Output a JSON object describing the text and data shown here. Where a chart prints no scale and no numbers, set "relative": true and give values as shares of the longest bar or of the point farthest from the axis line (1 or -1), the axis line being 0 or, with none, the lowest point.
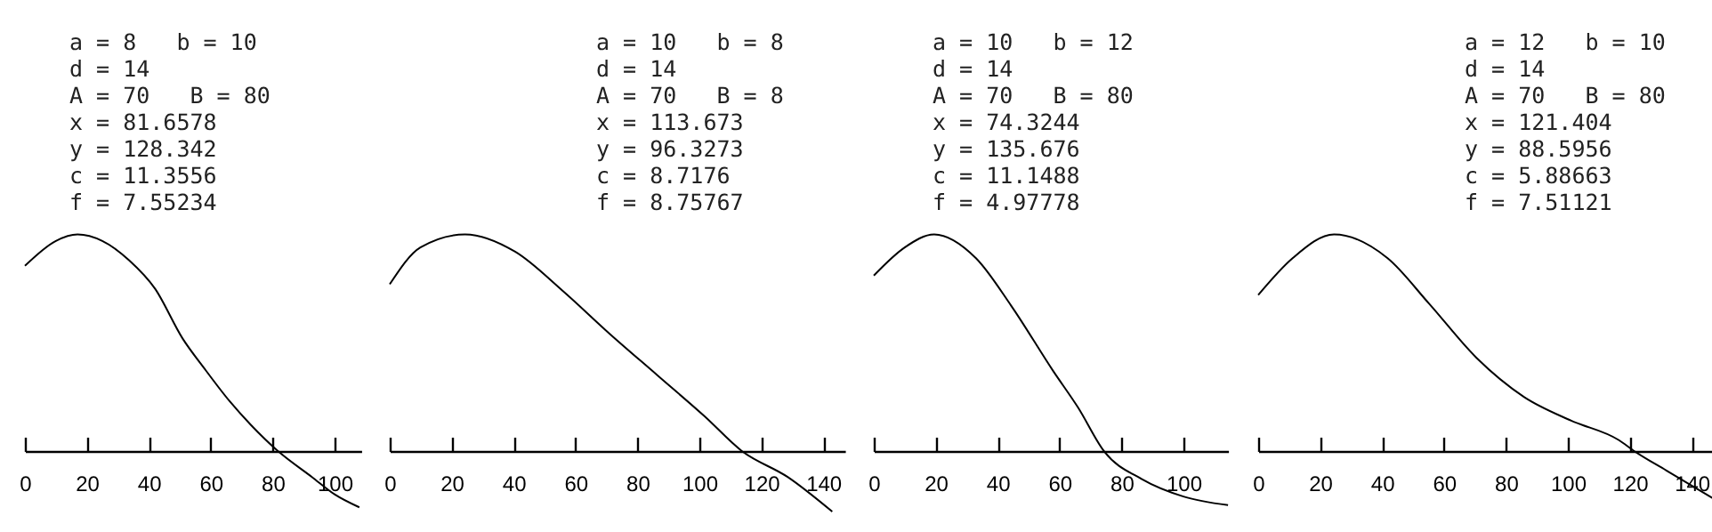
{
  "chart_data": [
    {
      "type": "line",
      "relative": true,
      "tick_labels": "x",
      "annotations": [
        "a = 8   b = 10",
        "d = 14",
        "A = 70   B = 80",
        "x = 81.6578",
        "y = 128.342",
        "c = 11.3556",
        "f = 7.55234"
      ],
      "xlim": [
        0,
        108.6
      ],
      "xticks": [
        0,
        20,
        40,
        60,
        80,
        100
      ],
      "series": [
        {
          "color": "#000000",
          "x": [
            0,
            10,
            17,
            25,
            33.7,
            42,
            50.9,
            58,
            66.1,
            73,
            81.7,
            92.7,
            100,
            108
          ],
          "values": [
            0.855,
            0.97,
            1,
            0.97,
            0.88,
            0.75,
            0.52,
            0.38,
            0.23,
            0.12,
            0,
            -0.12,
            -0.2,
            -0.26
          ]
        }
      ]
    },
    {
      "type": "line",
      "relative": true,
      "tick_labels": "x",
      "annotations": [
        "a = 10   b = 8",
        "d = 14",
        "A = 70   B = 8",
        "x = 113.673",
        "y = 96.3273",
        "c = 8.7176",
        "f = 8.75767"
      ],
      "xlim": [
        0,
        147
      ],
      "xticks": [
        0,
        20,
        40,
        60,
        80,
        100,
        120,
        140
      ],
      "series": [
        {
          "color": "#000000",
          "x": [
            0,
            9.9,
            24.3,
            40.5,
            55.8,
            71.1,
            86.4,
            101.7,
            113.7,
            128.5,
            142.9
          ],
          "values": [
            0.77,
            0.94,
            1,
            0.92,
            0.74,
            0.54,
            0.35,
            0.16,
            0,
            -0.12,
            -0.28
          ]
        }
      ]
    },
    {
      "type": "line",
      "relative": true,
      "tick_labels": "x",
      "annotations": [
        "a = 10   b = 12",
        "d = 14",
        "A = 70   B = 80",
        "x = 74.3244",
        "y = 135.676",
        "c = 11.1488",
        "f = 4.97778"
      ],
      "xlim": [
        0,
        114.4
      ],
      "xticks": [
        0,
        20,
        40,
        60,
        80,
        100
      ],
      "series": [
        {
          "color": "#000000",
          "x": [
            0,
            10,
            19.5,
            33,
            44.4,
            57.9,
            66,
            74.3,
            86.6,
            100,
            114.4
          ],
          "values": [
            0.81,
            0.94,
            1,
            0.89,
            0.67,
            0.37,
            0.2,
            0,
            -0.13,
            -0.21,
            -0.25
          ]
        }
      ]
    },
    {
      "type": "line",
      "relative": true,
      "tick_labels": "x",
      "annotations": [
        "a = 12   b = 10",
        "d = 14",
        "A = 70   B = 80",
        "x = 121.404",
        "y = 88.5956",
        "c = 5.88663",
        "f = 7.51121"
      ],
      "xlim": [
        0,
        147.1
      ],
      "xticks": [
        0,
        20,
        40,
        60,
        80,
        100,
        120,
        140
      ],
      "series": [
        {
          "color": "#000000",
          "x": [
            0,
            11.1,
            24.5,
            41.8,
            55.2,
            70.5,
            85.8,
            101.1,
            116.5,
            121.4,
            131.8,
            147.1
          ],
          "values": [
            0.72,
            0.89,
            1,
            0.89,
            0.68,
            0.43,
            0.25,
            0.14,
            0.05,
            0,
            -0.09,
            -0.22
          ]
        }
      ]
    }
  ]
}
